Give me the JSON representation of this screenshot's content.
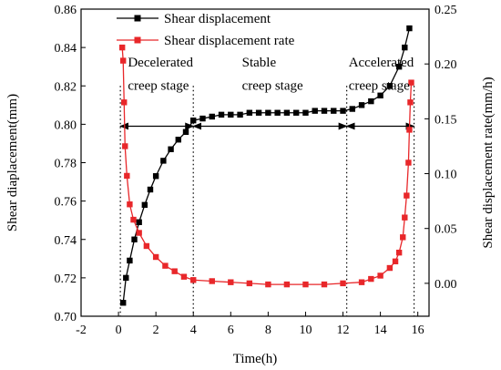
{
  "chart_data": {
    "type": "line",
    "xlabel": "Time(h)",
    "ylabel_left": "Shear diaplacement(mm)",
    "ylabel_right": "Shear displacement rate(mm/h)",
    "xlim": [
      -2,
      16.6
    ],
    "ylim_left": [
      0.7,
      0.86
    ],
    "ylim_right": [
      -0.03,
      0.25
    ],
    "x_ticks": [
      -2,
      0,
      2,
      4,
      6,
      8,
      10,
      12,
      14,
      16
    ],
    "y_ticks_left": [
      0.7,
      0.72,
      0.74,
      0.76,
      0.78,
      0.8,
      0.82,
      0.84,
      0.86
    ],
    "y_ticks_right": [
      0.0,
      0.05,
      0.1,
      0.15,
      0.2,
      0.25
    ],
    "series": [
      {
        "name": "Shear displacement",
        "axis": "left",
        "color": "#000000",
        "marker": "square",
        "x": [
          0.25,
          0.4,
          0.6,
          0.85,
          1.1,
          1.4,
          1.7,
          2.0,
          2.4,
          2.8,
          3.2,
          3.6,
          4.0,
          4.5,
          5.0,
          5.5,
          6.0,
          6.5,
          7.0,
          7.5,
          8.0,
          8.5,
          9.0,
          9.5,
          10.0,
          10.5,
          11.0,
          11.5,
          12.0,
          12.5,
          13.0,
          13.5,
          14.0,
          14.5,
          15.0,
          15.3,
          15.55
        ],
        "y": [
          0.707,
          0.72,
          0.729,
          0.74,
          0.749,
          0.758,
          0.766,
          0.773,
          0.781,
          0.787,
          0.792,
          0.796,
          0.802,
          0.803,
          0.804,
          0.805,
          0.805,
          0.805,
          0.806,
          0.806,
          0.806,
          0.806,
          0.806,
          0.806,
          0.806,
          0.807,
          0.807,
          0.807,
          0.807,
          0.808,
          0.81,
          0.812,
          0.815,
          0.82,
          0.83,
          0.84,
          0.85
        ]
      },
      {
        "name": "Shear displacement rate",
        "axis": "right",
        "color": "#e8272a",
        "marker": "square",
        "x": [
          0.2,
          0.25,
          0.3,
          0.35,
          0.45,
          0.6,
          0.8,
          1.1,
          1.5,
          2.0,
          2.5,
          3.0,
          3.5,
          4.0,
          5.0,
          6.0,
          7.0,
          8.0,
          9.0,
          10.0,
          11.0,
          12.0,
          13.0,
          13.5,
          14.0,
          14.5,
          14.8,
          15.0,
          15.2,
          15.3,
          15.4,
          15.5,
          15.55,
          15.6,
          15.65
        ],
        "y": [
          0.215,
          0.203,
          0.165,
          0.125,
          0.098,
          0.072,
          0.058,
          0.046,
          0.034,
          0.024,
          0.016,
          0.011,
          0.006,
          0.003,
          0.002,
          0.001,
          0.0,
          -0.001,
          -0.001,
          -0.001,
          -0.001,
          0.0,
          0.001,
          0.004,
          0.007,
          0.014,
          0.02,
          0.028,
          0.042,
          0.06,
          0.08,
          0.11,
          0.14,
          0.165,
          0.183
        ]
      }
    ],
    "vlines": [
      0.1,
      4.0,
      12.2,
      15.8
    ],
    "stage_arrow_y": 0.799,
    "annotations": [
      {
        "text": "Decelerated",
        "x": 0.5,
        "y": 0.83
      },
      {
        "text": "creep stage",
        "x": 0.5,
        "y": 0.818
      },
      {
        "text": "Stable",
        "x": 6.6,
        "y": 0.83
      },
      {
        "text": "creep stage",
        "x": 6.6,
        "y": 0.818
      },
      {
        "text": "Accelerated",
        "x": 12.3,
        "y": 0.83
      },
      {
        "text": "creep stage",
        "x": 12.3,
        "y": 0.818
      }
    ]
  }
}
